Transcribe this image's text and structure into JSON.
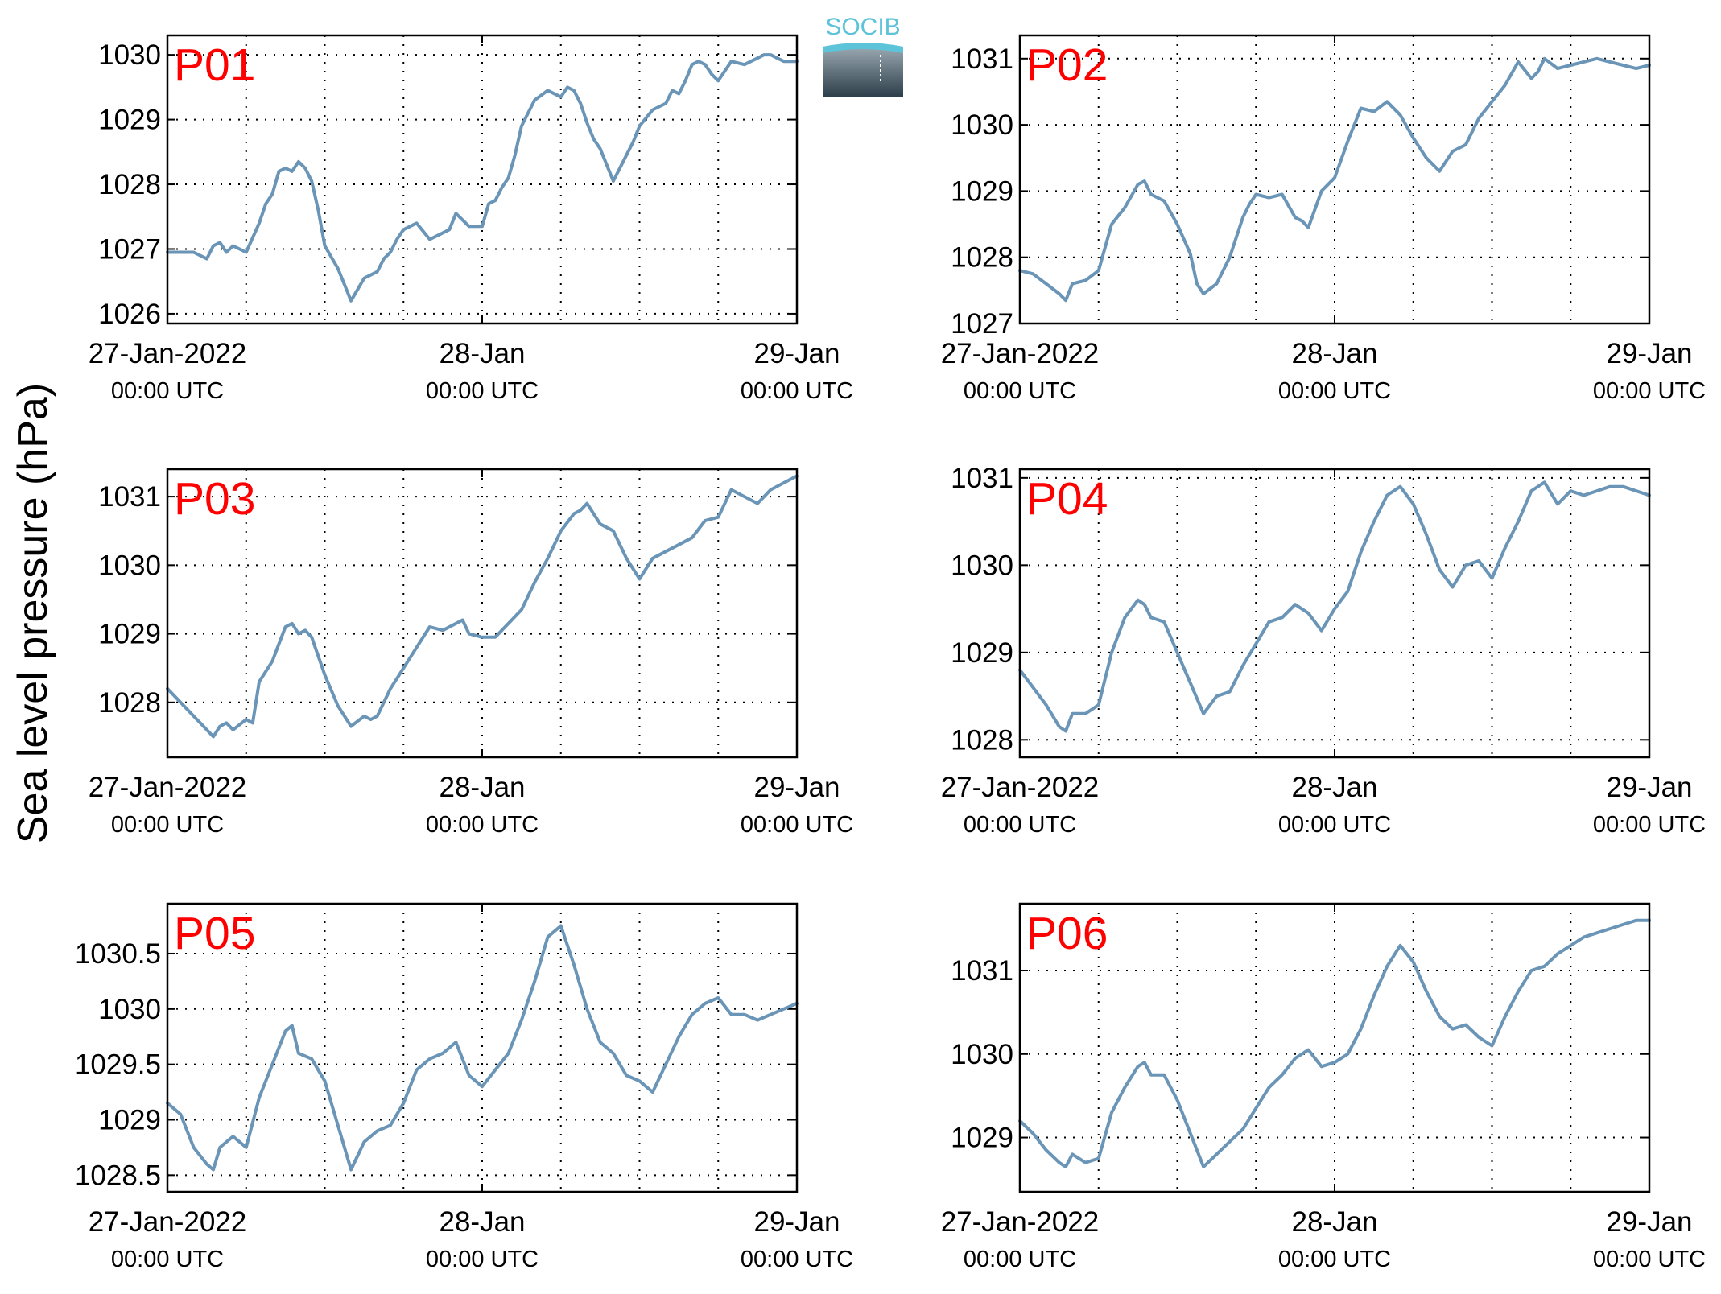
{
  "ylabel": "Sea level pressure (hPa)",
  "logo": {
    "text": "SOCIB",
    "colors": {
      "text": "#5cc3d8",
      "top": "#9aa8b1",
      "bottom": "#2d3f4a"
    }
  },
  "colors": {
    "line": "#6a95b7",
    "panel_label": "#ff0000",
    "background": "#ffffff"
  },
  "x_labels": [
    {
      "date": "27-Jan-2022",
      "time": "00:00 UTC"
    },
    {
      "date": "28-Jan",
      "time": "00:00 UTC"
    },
    {
      "date": "29-Jan",
      "time": "00:00 UTC"
    }
  ],
  "chart_data": [
    {
      "type": "line",
      "title": "P01",
      "xlabel": "",
      "ylabel": "Sea level pressure (hPa)",
      "xlim": [
        0,
        48
      ],
      "ylim": [
        1025.85,
        1030.3
      ],
      "yticks": [
        1026,
        1027,
        1028,
        1029,
        1030
      ],
      "ytick_labels": [
        "1026",
        "1027",
        "1028",
        "1029",
        "1030"
      ],
      "xticks_hours": [
        0,
        24,
        48
      ],
      "grid": true,
      "x": [
        0,
        1,
        2,
        3,
        3.5,
        4,
        4.5,
        5,
        6,
        7,
        7.5,
        8,
        8.5,
        9,
        9.5,
        10,
        10.5,
        11,
        11.5,
        12,
        13,
        14,
        15,
        15.5,
        16,
        16.5,
        17,
        17.5,
        18,
        18.5,
        19,
        20,
        20.5,
        21,
        21.5,
        22,
        22.5,
        23,
        24,
        24.5,
        25,
        25.5,
        26,
        26.5,
        27,
        27.5,
        28,
        29,
        30,
        30.5,
        31,
        31.5,
        32,
        32.5,
        33,
        34,
        35,
        35.5,
        36,
        37,
        37.5,
        38,
        38.5,
        39,
        39.5,
        40,
        40.5,
        41,
        41.5,
        42,
        43,
        44,
        45,
        45.5,
        46,
        46.5,
        47,
        48
      ],
      "y": [
        1026.95,
        1026.95,
        1026.95,
        1026.85,
        1027.05,
        1027.1,
        1026.95,
        1027.05,
        1026.95,
        1027.4,
        1027.7,
        1027.85,
        1028.2,
        1028.25,
        1028.2,
        1028.35,
        1028.25,
        1028.05,
        1027.6,
        1027.05,
        1026.7,
        1026.2,
        1026.55,
        1026.6,
        1026.65,
        1026.85,
        1026.95,
        1027.15,
        1027.3,
        1027.35,
        1027.4,
        1027.15,
        1027.2,
        1027.25,
        1027.3,
        1027.55,
        1027.45,
        1027.35,
        1027.35,
        1027.7,
        1027.75,
        1027.95,
        1028.1,
        1028.45,
        1028.9,
        1029.1,
        1029.3,
        1029.45,
        1029.35,
        1029.5,
        1029.45,
        1029.25,
        1028.95,
        1028.7,
        1028.55,
        1028.05,
        1028.45,
        1028.65,
        1028.9,
        1029.15,
        1029.2,
        1029.25,
        1029.45,
        1029.4,
        1029.6,
        1029.85,
        1029.9,
        1029.85,
        1029.7,
        1029.6,
        1029.9,
        1029.85,
        1029.95,
        1030.0,
        1030.0,
        1029.95,
        1029.9,
        1029.9
      ]
    },
    {
      "type": "line",
      "title": "P02",
      "xlabel": "",
      "ylabel": "Sea level pressure (hPa)",
      "xlim": [
        0,
        48
      ],
      "ylim": [
        1027,
        1031.35
      ],
      "yticks": [
        1027,
        1028,
        1029,
        1030,
        1031
      ],
      "ytick_labels": [
        "1027",
        "1028",
        "1029",
        "1030",
        "1031"
      ],
      "xticks_hours": [
        0,
        24,
        48
      ],
      "grid": true,
      "x": [
        0,
        1,
        2,
        3,
        3.5,
        4,
        5,
        6,
        7,
        8,
        9,
        9.5,
        10,
        11,
        12,
        13,
        13.5,
        14,
        15,
        16,
        16.5,
        17,
        17.5,
        18,
        19,
        20,
        21,
        21.5,
        22,
        23,
        24,
        25,
        25.5,
        26,
        27,
        28,
        29,
        30,
        31,
        32,
        33,
        34,
        35,
        36,
        37,
        38,
        39,
        39.5,
        40,
        41,
        42,
        43,
        44,
        45,
        46,
        47,
        48
      ],
      "y": [
        1027.8,
        1027.75,
        1027.6,
        1027.45,
        1027.35,
        1027.6,
        1027.65,
        1027.8,
        1028.5,
        1028.75,
        1029.1,
        1029.15,
        1028.95,
        1028.85,
        1028.5,
        1028.05,
        1027.6,
        1027.45,
        1027.6,
        1028.0,
        1028.3,
        1028.6,
        1028.8,
        1028.95,
        1028.9,
        1028.95,
        1028.6,
        1028.55,
        1028.45,
        1029.0,
        1029.2,
        1029.75,
        1030.0,
        1030.25,
        1030.2,
        1030.35,
        1030.15,
        1029.8,
        1029.5,
        1029.3,
        1029.6,
        1029.7,
        1030.1,
        1030.35,
        1030.6,
        1030.95,
        1030.7,
        1030.8,
        1031.0,
        1030.85,
        1030.9,
        1030.95,
        1031.0,
        1030.95,
        1030.9,
        1030.85,
        1030.9
      ]
    },
    {
      "type": "line",
      "title": "P03",
      "xlabel": "",
      "ylabel": "Sea level pressure (hPa)",
      "xlim": [
        0,
        48
      ],
      "ylim": [
        1027.2,
        1031.4
      ],
      "yticks": [
        1028,
        1029,
        1030,
        1031
      ],
      "ytick_labels": [
        "1028",
        "1029",
        "1030",
        "1031"
      ],
      "xticks_hours": [
        0,
        24,
        48
      ],
      "grid": true,
      "x": [
        0,
        1,
        2,
        3,
        3.5,
        4,
        4.5,
        5,
        6,
        6.5,
        7,
        8,
        9,
        9.5,
        10,
        10.5,
        11,
        12,
        13,
        14,
        15,
        15.5,
        16,
        17,
        18,
        19,
        20,
        21,
        22,
        22.5,
        23,
        24,
        25,
        26,
        27,
        28,
        29,
        30,
        31,
        31.5,
        32,
        33,
        34,
        35,
        36,
        37,
        38,
        39,
        40,
        41,
        42,
        43,
        44,
        45,
        46,
        47,
        48
      ],
      "y": [
        1028.2,
        1028.0,
        1027.8,
        1027.6,
        1027.5,
        1027.65,
        1027.7,
        1027.6,
        1027.75,
        1027.7,
        1028.3,
        1028.6,
        1029.1,
        1029.15,
        1029.0,
        1029.05,
        1028.95,
        1028.4,
        1027.95,
        1027.65,
        1027.8,
        1027.75,
        1027.8,
        1028.2,
        1028.5,
        1028.8,
        1029.1,
        1029.05,
        1029.15,
        1029.2,
        1029.0,
        1028.95,
        1028.95,
        1029.15,
        1029.35,
        1029.75,
        1030.1,
        1030.5,
        1030.75,
        1030.8,
        1030.9,
        1030.6,
        1030.5,
        1030.1,
        1029.8,
        1030.1,
        1030.2,
        1030.3,
        1030.4,
        1030.65,
        1030.7,
        1031.1,
        1031.0,
        1030.9,
        1031.1,
        1031.2,
        1031.3
      ]
    },
    {
      "type": "line",
      "title": "P04",
      "xlabel": "",
      "ylabel": "Sea level pressure (hPa)",
      "xlim": [
        0,
        48
      ],
      "ylim": [
        1027.8,
        1031.1
      ],
      "yticks": [
        1028,
        1029,
        1030,
        1031
      ],
      "ytick_labels": [
        "1028",
        "1029",
        "1030",
        "1031"
      ],
      "xticks_hours": [
        0,
        24,
        48
      ],
      "grid": true,
      "x": [
        0,
        1,
        2,
        3,
        3.5,
        4,
        5,
        6,
        7,
        8,
        9,
        9.5,
        10,
        11,
        12,
        13,
        14,
        15,
        16,
        17,
        18,
        19,
        20,
        21,
        22,
        23,
        24,
        25,
        26,
        27,
        28,
        29,
        30,
        31,
        32,
        33,
        34,
        35,
        36,
        37,
        38,
        39,
        40,
        41,
        42,
        43,
        44,
        45,
        46,
        47,
        48
      ],
      "y": [
        1028.8,
        1028.6,
        1028.4,
        1028.15,
        1028.1,
        1028.3,
        1028.3,
        1028.4,
        1029.0,
        1029.4,
        1029.6,
        1029.55,
        1029.4,
        1029.35,
        1029.0,
        1028.65,
        1028.3,
        1028.5,
        1028.55,
        1028.85,
        1029.1,
        1029.35,
        1029.4,
        1029.55,
        1029.45,
        1029.25,
        1029.5,
        1029.7,
        1030.15,
        1030.5,
        1030.8,
        1030.9,
        1030.7,
        1030.35,
        1029.95,
        1029.75,
        1030.0,
        1030.05,
        1029.85,
        1030.2,
        1030.5,
        1030.85,
        1030.95,
        1030.7,
        1030.85,
        1030.8,
        1030.85,
        1030.9,
        1030.9,
        1030.85,
        1030.8
      ]
    },
    {
      "type": "line",
      "title": "P05",
      "xlabel": "",
      "ylabel": "Sea level pressure (hPa)",
      "xlim": [
        0,
        48
      ],
      "ylim": [
        1028.35,
        1030.95
      ],
      "yticks": [
        1028.5,
        1029,
        1029.5,
        1030,
        1030.5
      ],
      "ytick_labels": [
        "1028.5",
        "1029",
        "1029.5",
        "1030",
        "1030.5"
      ],
      "xticks_hours": [
        0,
        24,
        48
      ],
      "grid": true,
      "x": [
        0,
        1,
        2,
        3,
        3.5,
        4,
        5,
        6,
        7,
        8,
        9,
        9.5,
        10,
        11,
        12,
        13,
        14,
        15,
        16,
        17,
        18,
        19,
        20,
        21,
        22,
        23,
        24,
        25,
        26,
        27,
        28,
        29,
        30,
        31,
        32,
        33,
        34,
        35,
        36,
        37,
        38,
        39,
        40,
        41,
        42,
        43,
        44,
        45,
        46,
        47,
        48
      ],
      "y": [
        1029.15,
        1029.05,
        1028.75,
        1028.6,
        1028.55,
        1028.75,
        1028.85,
        1028.75,
        1029.2,
        1029.5,
        1029.8,
        1029.85,
        1029.6,
        1029.55,
        1029.35,
        1028.95,
        1028.55,
        1028.8,
        1028.9,
        1028.95,
        1029.15,
        1029.45,
        1029.55,
        1029.6,
        1029.7,
        1029.4,
        1029.3,
        1029.45,
        1029.6,
        1029.9,
        1030.25,
        1030.65,
        1030.75,
        1030.4,
        1030.0,
        1029.7,
        1029.6,
        1029.4,
        1029.35,
        1029.25,
        1029.5,
        1029.75,
        1029.95,
        1030.05,
        1030.1,
        1029.95,
        1029.95,
        1029.9,
        1029.95,
        1030.0,
        1030.05
      ]
    },
    {
      "type": "line",
      "title": "P06",
      "xlabel": "",
      "ylabel": "Sea level pressure (hPa)",
      "xlim": [
        0,
        48
      ],
      "ylim": [
        1028.35,
        1031.8
      ],
      "yticks": [
        1029,
        1030,
        1031
      ],
      "ytick_labels": [
        "1029",
        "1030",
        "1031"
      ],
      "xticks_hours": [
        0,
        24,
        48
      ],
      "grid": true,
      "x": [
        0,
        1,
        2,
        3,
        3.5,
        4,
        5,
        6,
        7,
        8,
        9,
        9.5,
        10,
        11,
        12,
        13,
        14,
        15,
        16,
        17,
        18,
        19,
        20,
        21,
        22,
        23,
        24,
        25,
        26,
        27,
        28,
        29,
        30,
        31,
        32,
        33,
        34,
        35,
        36,
        37,
        38,
        39,
        40,
        41,
        42,
        43,
        44,
        45,
        46,
        47,
        48
      ],
      "y": [
        1029.2,
        1029.05,
        1028.85,
        1028.7,
        1028.65,
        1028.8,
        1028.7,
        1028.75,
        1029.3,
        1029.6,
        1029.85,
        1029.9,
        1029.75,
        1029.75,
        1029.45,
        1029.05,
        1028.65,
        1028.8,
        1028.95,
        1029.1,
        1029.35,
        1029.6,
        1029.75,
        1029.95,
        1030.05,
        1029.85,
        1029.9,
        1030.0,
        1030.3,
        1030.7,
        1031.05,
        1031.3,
        1031.1,
        1030.75,
        1030.45,
        1030.3,
        1030.35,
        1030.2,
        1030.1,
        1030.45,
        1030.75,
        1031.0,
        1031.05,
        1031.2,
        1031.3,
        1031.4,
        1031.45,
        1031.5,
        1031.55,
        1031.6,
        1031.6
      ]
    }
  ]
}
